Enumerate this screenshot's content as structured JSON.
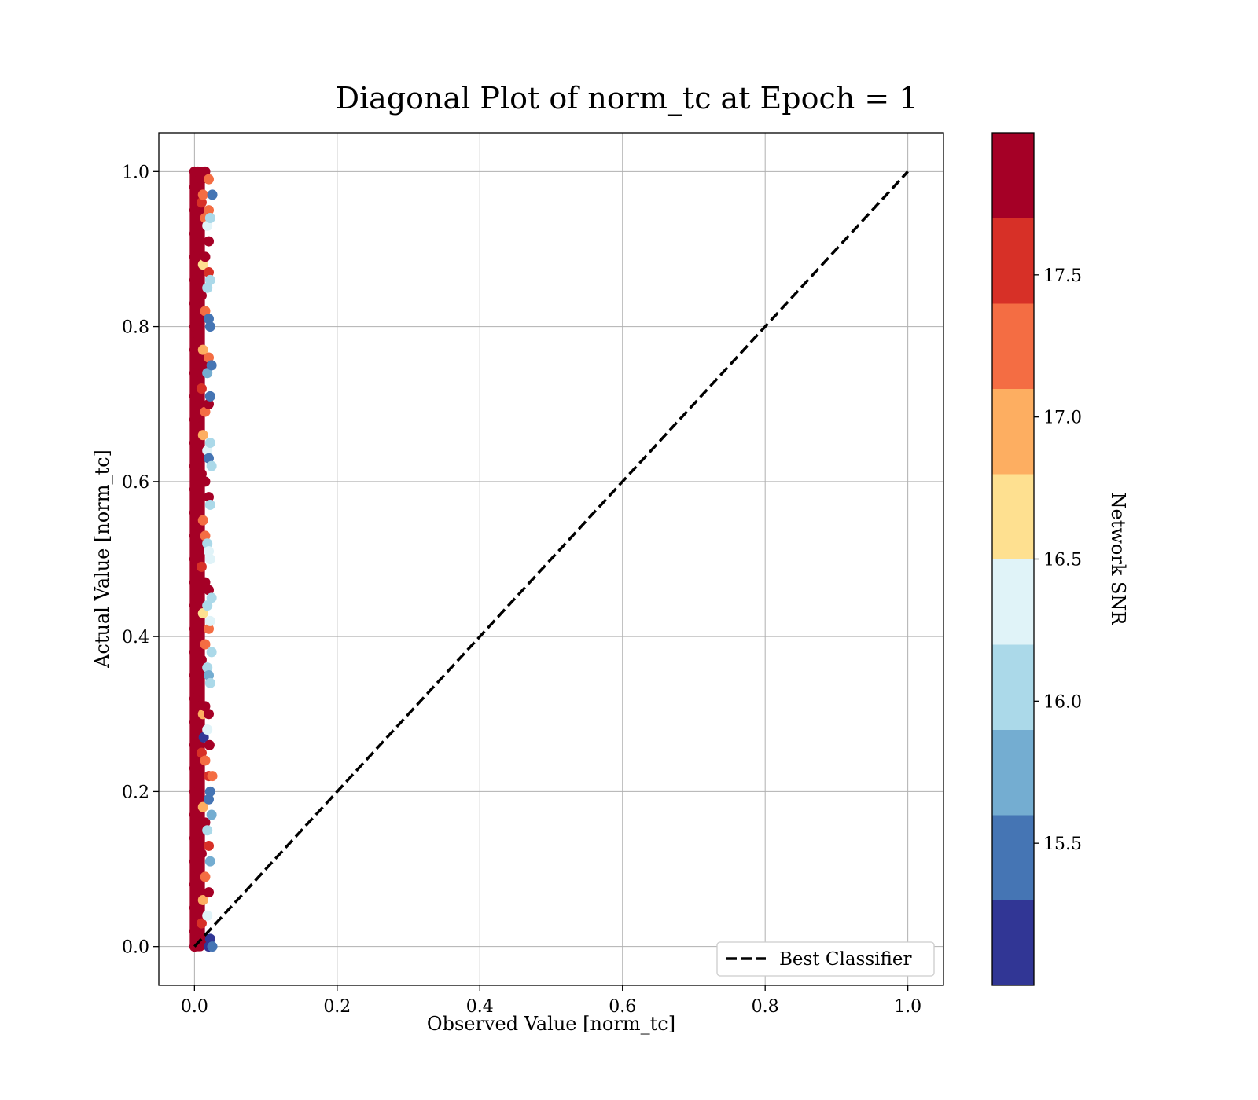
{
  "chart_data": {
    "type": "scatter",
    "title": "Diagonal Plot of norm_tc at Epoch = 1",
    "xlabel": "Observed Value [norm_tc]",
    "ylabel": "Actual Value [norm_tc]",
    "xlim": [
      -0.05,
      1.05
    ],
    "ylim": [
      -0.05,
      1.05
    ],
    "xticks": [
      0.0,
      0.2,
      0.4,
      0.6,
      0.8,
      1.0
    ],
    "xtick_labels": [
      "0.0",
      "0.2",
      "0.4",
      "0.6",
      "0.8",
      "1.0"
    ],
    "yticks": [
      0.0,
      0.2,
      0.4,
      0.6,
      0.8,
      1.0
    ],
    "ytick_labels": [
      "0.0",
      "0.2",
      "0.4",
      "0.6",
      "0.8",
      "1.0"
    ],
    "grid": true,
    "scatter": {
      "description_range": {
        "x": [
          0.0,
          0.025
        ],
        "y": [
          0.0,
          1.0
        ]
      },
      "color_by": "Network SNR",
      "points": [
        [
          0.0,
          0.0,
          17.9
        ],
        [
          0.0,
          0.02,
          17.9
        ],
        [
          0.0,
          0.05,
          17.9
        ],
        [
          0.0,
          0.08,
          17.9
        ],
        [
          0.0,
          0.11,
          17.9
        ],
        [
          0.0,
          0.14,
          17.9
        ],
        [
          0.0,
          0.17,
          17.9
        ],
        [
          0.0,
          0.2,
          17.9
        ],
        [
          0.0,
          0.23,
          17.9
        ],
        [
          0.0,
          0.26,
          17.9
        ],
        [
          0.0,
          0.29,
          17.9
        ],
        [
          0.0,
          0.32,
          17.9
        ],
        [
          0.0,
          0.35,
          17.9
        ],
        [
          0.0,
          0.38,
          17.9
        ],
        [
          0.0,
          0.41,
          17.9
        ],
        [
          0.0,
          0.44,
          17.9
        ],
        [
          0.0,
          0.47,
          17.9
        ],
        [
          0.0,
          0.5,
          17.9
        ],
        [
          0.0,
          0.53,
          17.9
        ],
        [
          0.0,
          0.56,
          17.9
        ],
        [
          0.0,
          0.59,
          17.9
        ],
        [
          0.0,
          0.62,
          17.9
        ],
        [
          0.0,
          0.65,
          17.9
        ],
        [
          0.0,
          0.68,
          17.9
        ],
        [
          0.0,
          0.71,
          17.9
        ],
        [
          0.0,
          0.74,
          17.9
        ],
        [
          0.0,
          0.77,
          17.9
        ],
        [
          0.0,
          0.8,
          17.9
        ],
        [
          0.0,
          0.83,
          17.9
        ],
        [
          0.0,
          0.86,
          17.9
        ],
        [
          0.0,
          0.89,
          17.9
        ],
        [
          0.0,
          0.92,
          17.9
        ],
        [
          0.0,
          0.95,
          17.9
        ],
        [
          0.0,
          0.98,
          17.9
        ],
        [
          0.0,
          1.0,
          17.9
        ],
        [
          0.005,
          0.01,
          17.8
        ],
        [
          0.005,
          0.1,
          17.9
        ],
        [
          0.005,
          0.21,
          17.8
        ],
        [
          0.005,
          0.33,
          17.9
        ],
        [
          0.005,
          0.45,
          17.8
        ],
        [
          0.005,
          0.56,
          17.9
        ],
        [
          0.005,
          0.67,
          17.8
        ],
        [
          0.005,
          0.79,
          17.9
        ],
        [
          0.005,
          0.9,
          17.8
        ],
        [
          0.005,
          1.0,
          17.9
        ],
        [
          0.01,
          0.03,
          17.6
        ],
        [
          0.01,
          0.12,
          17.9
        ],
        [
          0.01,
          0.25,
          17.5
        ],
        [
          0.01,
          0.37,
          17.9
        ],
        [
          0.01,
          0.49,
          17.6
        ],
        [
          0.01,
          0.61,
          17.9
        ],
        [
          0.01,
          0.72,
          17.5
        ],
        [
          0.01,
          0.84,
          17.9
        ],
        [
          0.01,
          0.96,
          17.6
        ],
        [
          0.01,
          0.99,
          17.9
        ],
        [
          0.012,
          0.06,
          17.0
        ],
        [
          0.012,
          0.18,
          16.8
        ],
        [
          0.012,
          0.3,
          17.0
        ],
        [
          0.012,
          0.43,
          16.6
        ],
        [
          0.012,
          0.55,
          17.1
        ],
        [
          0.012,
          0.66,
          16.9
        ],
        [
          0.012,
          0.77,
          17.0
        ],
        [
          0.012,
          0.88,
          16.7
        ],
        [
          0.012,
          0.97,
          17.2
        ],
        [
          0.013,
          0.27,
          15.2
        ],
        [
          0.015,
          0.01,
          17.9
        ],
        [
          0.015,
          0.09,
          17.4
        ],
        [
          0.015,
          0.16,
          17.9
        ],
        [
          0.015,
          0.24,
          17.3
        ],
        [
          0.015,
          0.31,
          17.9
        ],
        [
          0.015,
          0.39,
          17.4
        ],
        [
          0.015,
          0.47,
          17.9
        ],
        [
          0.015,
          0.53,
          17.3
        ],
        [
          0.015,
          0.6,
          17.9
        ],
        [
          0.015,
          0.69,
          17.4
        ],
        [
          0.015,
          0.75,
          17.9
        ],
        [
          0.015,
          0.82,
          17.3
        ],
        [
          0.015,
          0.89,
          17.9
        ],
        [
          0.015,
          0.94,
          17.4
        ],
        [
          0.015,
          1.0,
          17.9
        ],
        [
          0.018,
          0.04,
          16.3
        ],
        [
          0.018,
          0.15,
          16.1
        ],
        [
          0.018,
          0.28,
          16.4
        ],
        [
          0.018,
          0.36,
          15.9
        ],
        [
          0.018,
          0.44,
          16.2
        ],
        [
          0.018,
          0.52,
          16.0
        ],
        [
          0.018,
          0.64,
          16.3
        ],
        [
          0.018,
          0.74,
          15.8
        ],
        [
          0.018,
          0.85,
          16.2
        ],
        [
          0.018,
          0.93,
          16.4
        ],
        [
          0.02,
          0.0,
          15.1
        ],
        [
          0.02,
          0.07,
          17.9
        ],
        [
          0.02,
          0.13,
          17.5
        ],
        [
          0.02,
          0.19,
          15.3
        ],
        [
          0.02,
          0.22,
          17.5
        ],
        [
          0.02,
          0.3,
          17.9
        ],
        [
          0.02,
          0.35,
          15.7
        ],
        [
          0.02,
          0.41,
          17.2
        ],
        [
          0.02,
          0.46,
          17.9
        ],
        [
          0.02,
          0.51,
          16.4
        ],
        [
          0.02,
          0.58,
          17.9
        ],
        [
          0.02,
          0.63,
          15.5
        ],
        [
          0.02,
          0.7,
          17.9
        ],
        [
          0.02,
          0.76,
          17.4
        ],
        [
          0.02,
          0.81,
          15.4
        ],
        [
          0.02,
          0.87,
          17.5
        ],
        [
          0.02,
          0.91,
          17.9
        ],
        [
          0.02,
          0.95,
          17.4
        ],
        [
          0.02,
          0.99,
          17.2
        ],
        [
          0.021,
          0.26,
          17.9
        ],
        [
          0.022,
          0.01,
          15.1
        ],
        [
          0.022,
          0.11,
          15.7
        ],
        [
          0.022,
          0.2,
          15.4
        ],
        [
          0.022,
          0.34,
          16.0
        ],
        [
          0.022,
          0.42,
          16.3
        ],
        [
          0.022,
          0.5,
          16.4
        ],
        [
          0.022,
          0.57,
          15.9
        ],
        [
          0.022,
          0.65,
          16.1
        ],
        [
          0.022,
          0.71,
          15.4
        ],
        [
          0.022,
          0.8,
          15.6
        ],
        [
          0.022,
          0.86,
          16.0
        ],
        [
          0.022,
          0.94,
          16.1
        ],
        [
          0.024,
          0.17,
          15.8
        ],
        [
          0.024,
          0.38,
          16.2
        ],
        [
          0.024,
          0.62,
          16.2
        ],
        [
          0.024,
          0.75,
          15.5
        ],
        [
          0.025,
          0.97,
          15.4
        ],
        [
          0.025,
          0.22,
          17.4
        ],
        [
          0.025,
          0.0,
          15.3
        ],
        [
          0.024,
          0.45,
          16.0
        ]
      ]
    },
    "line": {
      "name": "Best Classifier",
      "style": "dashed",
      "color": "#000000",
      "x": [
        0.0,
        1.0
      ],
      "y": [
        0.0,
        1.0
      ]
    },
    "legend": {
      "placement": "bottom-right",
      "entries": [
        "Best Classifier"
      ]
    },
    "colorbar": {
      "label": "Network SNR",
      "range": [
        15.0,
        18.0
      ],
      "ticks": [
        15.5,
        16.0,
        16.5,
        17.0,
        17.5
      ],
      "tick_labels": [
        "15.5",
        "16.0",
        "16.5",
        "17.0",
        "17.5"
      ],
      "colors": [
        "#313695",
        "#4575b4",
        "#74add1",
        "#abd9e9",
        "#e0f3f8",
        "#fee090",
        "#fdae61",
        "#f46d43",
        "#d73027",
        "#a50026"
      ]
    }
  }
}
